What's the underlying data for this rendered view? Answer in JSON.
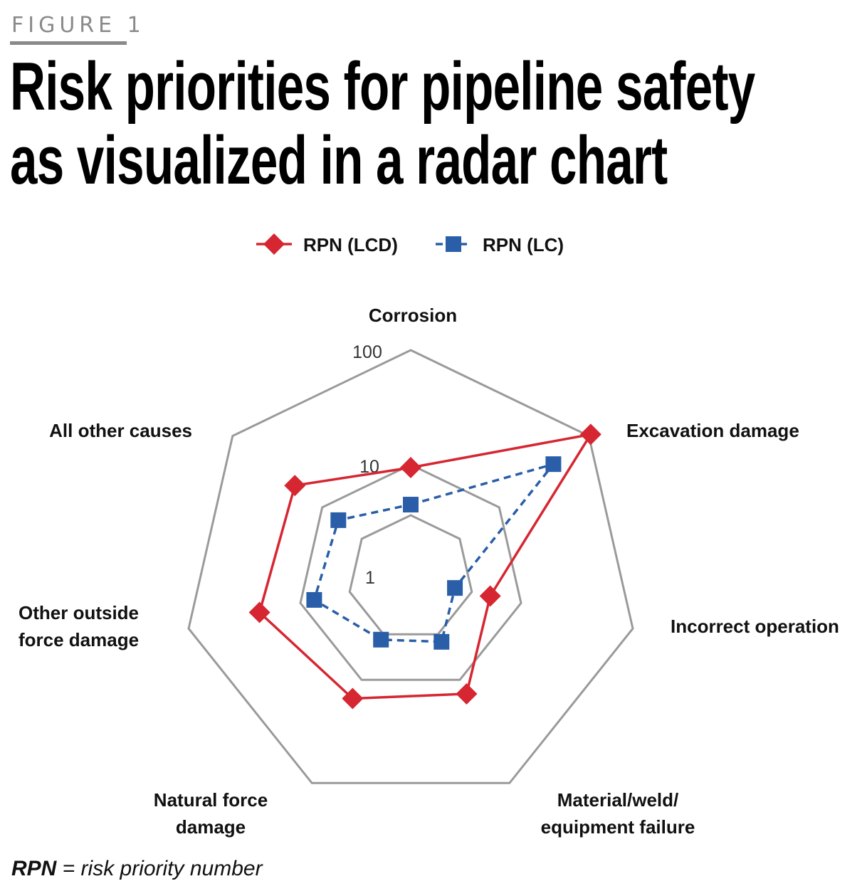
{
  "figure_label": "FIGURE 1",
  "title_line1": "Risk priorities for pipeline safety",
  "title_line2": "as visualized in a radar chart",
  "footnote": {
    "term": "RPN",
    "definition": " = risk priority number"
  },
  "chart_data": {
    "type": "radar",
    "scale": "log",
    "range": [
      1,
      100
    ],
    "tick_labels": [
      "1",
      "10",
      "100"
    ],
    "categories": [
      [
        "Corrosion"
      ],
      [
        "Excavation damage"
      ],
      [
        "Incorrect operation"
      ],
      [
        "Material/weld/",
        "equipment failure"
      ],
      [
        "Natural force",
        "damage"
      ],
      [
        "Other outside",
        "force damage"
      ],
      [
        "All other causes"
      ]
    ],
    "series": [
      {
        "name": "RPN (LCD)",
        "color": "#d62631",
        "marker": "diamond",
        "line": "solid",
        "values": [
          9.3,
          105,
          5.2,
          13.5,
          15,
          23,
          20
        ]
      },
      {
        "name": "RPN (LC)",
        "color": "#2a5ea8",
        "marker": "square",
        "line": "dashed",
        "values": [
          4.4,
          40,
          2.5,
          4.2,
          4.0,
          7.4,
          6.5
        ]
      }
    ],
    "legend_position": "top-center",
    "grid": true
  }
}
